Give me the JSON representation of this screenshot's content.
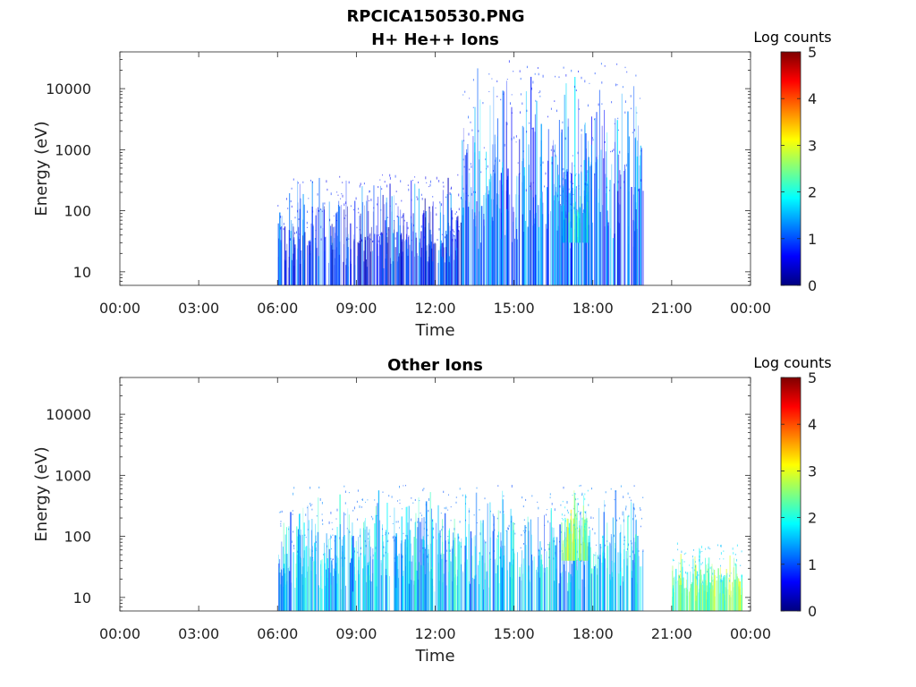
{
  "figure": {
    "title": "RPCICA150530.PNG"
  },
  "chart_data": [
    {
      "type": "heatmap",
      "title": "H+ He++ Ions",
      "xlabel": "Time",
      "ylabel": "Energy (eV)",
      "x_ticks": [
        "00:00",
        "03:00",
        "06:00",
        "09:00",
        "12:00",
        "15:00",
        "18:00",
        "21:00",
        "00:00"
      ],
      "y_ticks": [
        "10",
        "100",
        "1000",
        "10000"
      ],
      "y_tick_values": [
        10,
        100,
        1000,
        10000
      ],
      "x_range_hours": [
        0,
        24
      ],
      "ylim": [
        6,
        40000
      ],
      "y_scale": "log",
      "colorbar": {
        "label": "Log counts",
        "ticks": [
          "0",
          "1",
          "2",
          "3",
          "4",
          "5"
        ],
        "range": [
          0,
          5
        ],
        "colormap": "jet"
      },
      "regions": [
        {
          "start_hour": 6.0,
          "end_hour": 13.0,
          "e_low": 6,
          "e_high": 400,
          "level": 0.8
        },
        {
          "start_hour": 13.0,
          "end_hour": 19.9,
          "e_low": 6,
          "e_high": 30000,
          "level": 1.1
        },
        {
          "start_hour": 16.8,
          "end_hour": 17.8,
          "e_low": 30,
          "e_high": 600,
          "level": 1.8
        }
      ]
    },
    {
      "type": "heatmap",
      "title": "Other Ions",
      "xlabel": "Time",
      "ylabel": "Energy (eV)",
      "x_ticks": [
        "00:00",
        "03:00",
        "06:00",
        "09:00",
        "12:00",
        "15:00",
        "18:00",
        "21:00",
        "00:00"
      ],
      "y_ticks": [
        "10",
        "100",
        "1000",
        "10000"
      ],
      "y_tick_values": [
        10,
        100,
        1000,
        10000
      ],
      "x_range_hours": [
        0,
        24
      ],
      "ylim": [
        6,
        40000
      ],
      "y_scale": "log",
      "colorbar": {
        "label": "Log counts",
        "ticks": [
          "0",
          "1",
          "2",
          "3",
          "4",
          "5"
        ],
        "range": [
          0,
          5
        ],
        "colormap": "jet"
      },
      "regions": [
        {
          "start_hour": 6.0,
          "end_hour": 19.9,
          "e_low": 6,
          "e_high": 700,
          "level": 1.6
        },
        {
          "start_hour": 16.8,
          "end_hour": 17.8,
          "e_low": 40,
          "e_high": 700,
          "level": 2.6
        },
        {
          "start_hour": 21.0,
          "end_hour": 23.7,
          "e_low": 6,
          "e_high": 80,
          "level": 2.4
        }
      ]
    }
  ]
}
